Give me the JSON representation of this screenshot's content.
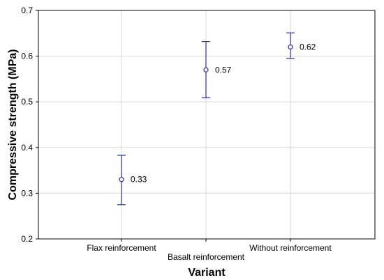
{
  "chart_data": {
    "type": "scatter",
    "xlabel": "Variant",
    "ylabel": "Compressive strength (MPa)",
    "ylim": [
      0.2,
      0.7
    ],
    "yticks": [
      "0.2",
      "0.3",
      "0.4",
      "0.5",
      "0.6",
      "0.7"
    ],
    "grid": true,
    "categories": [
      "Flax reinforcement",
      "Basalt reinforcement",
      "Without reinforcement"
    ],
    "values": [
      0.33,
      0.57,
      0.62
    ],
    "value_labels": [
      "0.33",
      "0.57",
      "0.62"
    ],
    "error_low": [
      0.275,
      0.509,
      0.595
    ],
    "error_high": [
      0.383,
      0.632,
      0.651
    ],
    "colors": {
      "marker": "#2b2bb0",
      "grid": "#d8d8d8",
      "axis": "#000000"
    }
  }
}
